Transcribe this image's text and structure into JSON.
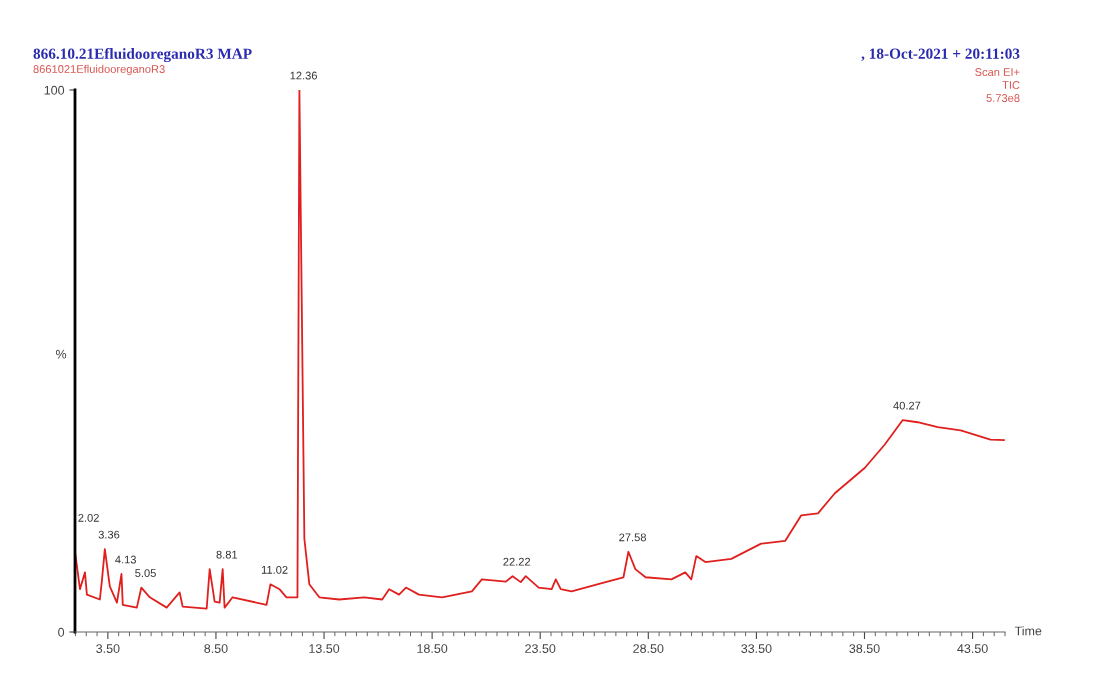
{
  "chart_data": {
    "type": "line",
    "title": "866.10.21EfluidooreganoR3 MAP",
    "subtitle": "8661021EfluidooreganoR3",
    "xlabel": "Time",
    "ylabel": "%",
    "annotations": [
      ", 18-Oct-2021 + 20:11:03",
      "Scan EI+",
      "TIC",
      "5.73e8",
      {
        "text": "2.02",
        "x": 1.98,
        "y": 14.8
      },
      {
        "text": "3.36",
        "x": 3.36,
        "y": 15.3
      },
      {
        "text": "4.13",
        "x": 4.13,
        "y": 10.7
      },
      {
        "text": "5.05",
        "x": 5.05,
        "y": 8.2
      },
      {
        "text": "8.81",
        "x": 8.81,
        "y": 11.6
      },
      {
        "text": "11.02",
        "x": 11.02,
        "y": 8.8
      },
      {
        "text": "12.36",
        "x": 12.36,
        "y": 100
      },
      {
        "text": "22.22",
        "x": 22.22,
        "y": 10.3
      },
      {
        "text": "27.58",
        "x": 27.58,
        "y": 14.8
      },
      {
        "text": "40.27",
        "x": 40.27,
        "y": 39.1
      }
    ],
    "xlim": [
      1.98,
      45.0
    ],
    "ylim": [
      0,
      100
    ],
    "xticks": [
      {
        "value": 3.5,
        "label": "3.50"
      },
      {
        "value": 8.5,
        "label": "8.50"
      },
      {
        "value": 13.5,
        "label": "13.50"
      },
      {
        "value": 18.5,
        "label": "18.50"
      },
      {
        "value": 23.5,
        "label": "23.50"
      },
      {
        "value": 28.5,
        "label": "28.50"
      },
      {
        "value": 33.5,
        "label": "33.50"
      },
      {
        "value": 38.5,
        "label": "38.50"
      },
      {
        "value": 43.5,
        "label": "43.50"
      }
    ],
    "yticks": [
      0,
      100
    ],
    "grid": false,
    "legend": false,
    "marker": "none",
    "line_style": "solid",
    "series": [
      {
        "color": "#e0201e",
        "x": [
          1.98,
          2.21,
          2.44,
          2.53,
          3.13,
          3.22,
          3.36,
          3.59,
          3.92,
          4.13,
          4.19,
          4.84,
          5.05,
          5.44,
          6.22,
          6.82,
          6.96,
          8.07,
          8.21,
          8.44,
          8.67,
          8.81,
          8.9,
          9.27,
          10.84,
          11.02,
          11.44,
          11.76,
          12.27,
          12.36,
          12.59,
          12.82,
          13.28,
          14.2,
          15.36,
          16.19,
          16.51,
          16.97,
          17.29,
          17.89,
          18.96,
          20.34,
          20.8,
          21.91,
          22.22,
          22.6,
          22.83,
          23.43,
          24.03,
          24.22,
          24.45,
          24.95,
          26.52,
          27.35,
          27.58,
          27.9,
          28.37,
          29.57,
          30.21,
          30.49,
          30.72,
          31.14,
          32.34,
          33.72,
          34.83,
          35.57,
          36.35,
          37.13,
          38.52,
          39.44,
          40.27,
          40.96,
          41.89,
          42.95,
          44.33,
          44.95
        ],
        "values": [
          14.8,
          7.9,
          11.0,
          6.9,
          6.0,
          9.3,
          15.3,
          8.4,
          5.4,
          10.7,
          5.0,
          4.5,
          8.2,
          6.4,
          4.5,
          7.3,
          4.7,
          4.3,
          11.6,
          5.6,
          5.4,
          11.6,
          4.5,
          6.4,
          5.0,
          8.8,
          7.9,
          6.4,
          6.4,
          100,
          17.2,
          8.8,
          6.4,
          6.0,
          6.4,
          6.0,
          7.9,
          6.9,
          8.2,
          6.9,
          6.4,
          7.5,
          9.7,
          9.3,
          10.3,
          9.2,
          10.3,
          8.2,
          7.9,
          9.7,
          7.9,
          7.5,
          9.2,
          10.1,
          14.8,
          11.6,
          10.1,
          9.7,
          11.0,
          9.7,
          14.0,
          12.9,
          13.5,
          16.3,
          16.8,
          21.5,
          21.9,
          25.6,
          30.3,
          34.6,
          39.1,
          38.7,
          37.8,
          37.2,
          35.5,
          35.4
        ]
      }
    ]
  }
}
